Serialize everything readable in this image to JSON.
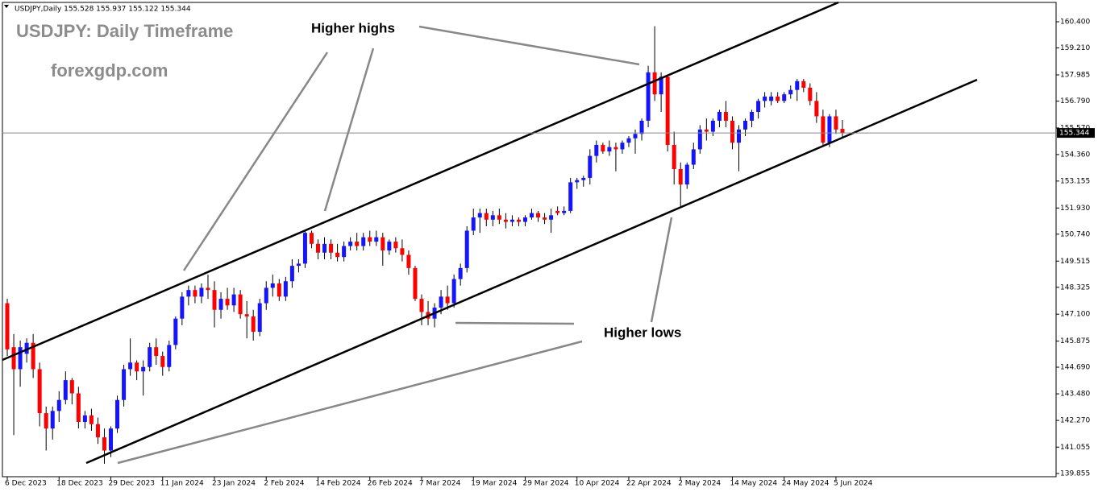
{
  "chart_data": {
    "type": "candlestick",
    "header": "USDJPY,Daily  155.528 155.937 155.122 155.344",
    "title": "USDJPY: Daily Timeframe",
    "subtitle": "forexgdp.com",
    "annotations": [
      "Higher highs",
      "Higher lows"
    ],
    "up_color": "#1414ff",
    "down_color": "#ff0000",
    "wick_color": "#000000",
    "last_price": 155.344,
    "xlim": [
      -0.75,
      162
    ],
    "ylim": [
      139.71,
      161.39
    ],
    "xticks": [
      {
        "value": 0,
        "label": "6 Dec 2023"
      },
      {
        "value": 8,
        "label": "18 Dec 2023"
      },
      {
        "value": 16,
        "label": "29 Dec 2023"
      },
      {
        "value": 24,
        "label": "11 Jan 2024"
      },
      {
        "value": 32,
        "label": "23 Jan 2024"
      },
      {
        "value": 40,
        "label": "2 Feb 2024"
      },
      {
        "value": 48,
        "label": "14 Feb 2024"
      },
      {
        "value": 56,
        "label": "26 Feb 2024"
      },
      {
        "value": 64,
        "label": "7 Mar 2024"
      },
      {
        "value": 72,
        "label": "19 Mar 2024"
      },
      {
        "value": 80,
        "label": "29 Mar 2024"
      },
      {
        "value": 88,
        "label": "10 Apr 2024"
      },
      {
        "value": 96,
        "label": "22 Apr 2024"
      },
      {
        "value": 104,
        "label": "2 May 2024"
      },
      {
        "value": 112,
        "label": "14 May 2024"
      },
      {
        "value": 120,
        "label": "24 May 2024"
      },
      {
        "value": 128,
        "label": "5 Jun 2024"
      }
    ],
    "yticks": [
      {
        "value": 160.4,
        "label": "160.400"
      },
      {
        "value": 159.21,
        "label": "159.210"
      },
      {
        "value": 157.985,
        "label": "157.985"
      },
      {
        "value": 156.79,
        "label": "156.790"
      },
      {
        "value": 155.57,
        "label": "155.570"
      },
      {
        "value": 154.36,
        "label": "154.360"
      },
      {
        "value": 153.155,
        "label": "153.155"
      },
      {
        "value": 151.93,
        "label": "151.930"
      },
      {
        "value": 150.74,
        "label": "150.740"
      },
      {
        "value": 149.515,
        "label": "149.515"
      },
      {
        "value": 148.325,
        "label": "148.325"
      },
      {
        "value": 147.1,
        "label": "147.100"
      },
      {
        "value": 145.875,
        "label": "145.875"
      },
      {
        "value": 144.69,
        "label": "144.690"
      },
      {
        "value": 143.48,
        "label": "143.480"
      },
      {
        "value": 142.27,
        "label": "142.270"
      },
      {
        "value": 141.055,
        "label": "141.055"
      },
      {
        "value": 139.855,
        "label": "139.855"
      }
    ],
    "ohlc": [
      [
        147.6,
        147.8,
        145.2,
        145.5
      ],
      [
        145.6,
        146.2,
        141.6,
        144.6
      ],
      [
        144.6,
        145.9,
        143.8,
        145.6
      ],
      [
        145.3,
        146.0,
        144.9,
        145.8
      ],
      [
        145.8,
        146.2,
        144.2,
        144.6
      ],
      [
        144.6,
        144.9,
        142.0,
        142.6
      ],
      [
        142.6,
        142.9,
        140.9,
        141.9
      ],
      [
        141.9,
        142.9,
        141.4,
        142.7
      ],
      [
        142.7,
        143.6,
        142.2,
        143.2
      ],
      [
        143.2,
        144.5,
        143.0,
        144.1
      ],
      [
        144.1,
        144.2,
        143.0,
        143.5
      ],
      [
        143.5,
        143.8,
        141.9,
        142.2
      ],
      [
        142.2,
        142.7,
        141.9,
        142.5
      ],
      [
        142.5,
        142.8,
        141.8,
        142.1
      ],
      [
        142.1,
        142.4,
        141.2,
        141.5
      ],
      [
        141.5,
        141.9,
        140.3,
        140.9
      ],
      [
        140.9,
        142.0,
        140.6,
        141.9
      ],
      [
        141.9,
        143.4,
        141.7,
        143.2
      ],
      [
        143.2,
        144.8,
        142.9,
        144.6
      ],
      [
        144.6,
        146.0,
        144.3,
        144.9
      ],
      [
        144.9,
        145.0,
        144.1,
        144.5
      ],
      [
        144.5,
        145.0,
        143.4,
        144.7
      ],
      [
        144.7,
        145.8,
        144.5,
        145.6
      ],
      [
        145.6,
        146.0,
        144.8,
        145.2
      ],
      [
        145.2,
        145.4,
        144.3,
        144.7
      ],
      [
        144.7,
        145.9,
        144.5,
        145.7
      ],
      [
        145.7,
        147.0,
        145.5,
        146.9
      ],
      [
        146.9,
        148.1,
        146.6,
        147.9
      ],
      [
        147.9,
        148.4,
        147.5,
        148.2
      ],
      [
        148.2,
        148.4,
        147.6,
        147.9
      ],
      [
        147.9,
        148.5,
        147.6,
        148.3
      ],
      [
        148.3,
        148.9,
        147.8,
        148.2
      ],
      [
        148.2,
        148.6,
        146.5,
        147.3
      ],
      [
        147.3,
        148.1,
        146.9,
        147.8
      ],
      [
        147.8,
        148.3,
        147.3,
        147.5
      ],
      [
        147.5,
        148.3,
        147.2,
        148.0
      ],
      [
        148.0,
        148.2,
        146.9,
        147.1
      ],
      [
        147.1,
        147.7,
        146.0,
        147.0
      ],
      [
        147.0,
        147.3,
        145.9,
        146.3
      ],
      [
        146.3,
        147.8,
        146.1,
        147.6
      ],
      [
        147.6,
        148.6,
        147.3,
        148.3
      ],
      [
        148.3,
        148.9,
        147.9,
        148.5
      ],
      [
        148.5,
        148.7,
        147.7,
        147.9
      ],
      [
        147.9,
        148.8,
        147.7,
        148.6
      ],
      [
        148.6,
        149.6,
        148.3,
        149.3
      ],
      [
        149.3,
        149.6,
        149.0,
        149.4
      ],
      [
        149.4,
        150.9,
        149.2,
        150.8
      ],
      [
        150.8,
        150.9,
        150.1,
        150.3
      ],
      [
        150.3,
        150.5,
        149.6,
        149.9
      ],
      [
        149.9,
        150.6,
        149.6,
        150.3
      ],
      [
        150.3,
        150.5,
        149.6,
        149.9
      ],
      [
        149.9,
        150.3,
        149.5,
        149.7
      ],
      [
        149.7,
        150.4,
        149.5,
        150.2
      ],
      [
        150.2,
        150.6,
        150.0,
        150.4
      ],
      [
        150.4,
        150.8,
        150.0,
        150.2
      ],
      [
        150.2,
        150.8,
        150.0,
        150.6
      ],
      [
        150.6,
        150.9,
        150.2,
        150.4
      ],
      [
        150.4,
        150.9,
        150.2,
        150.6
      ],
      [
        150.6,
        150.8,
        149.3,
        150.0
      ],
      [
        150.0,
        150.5,
        149.8,
        150.4
      ],
      [
        150.4,
        150.6,
        149.9,
        150.1
      ],
      [
        150.1,
        150.5,
        149.5,
        149.8
      ],
      [
        149.8,
        150.0,
        148.9,
        149.2
      ],
      [
        149.2,
        149.3,
        147.7,
        147.8
      ],
      [
        147.8,
        148.0,
        146.6,
        147.2
      ],
      [
        147.2,
        147.7,
        146.6,
        146.9
      ],
      [
        146.9,
        147.6,
        146.5,
        147.4
      ],
      [
        147.4,
        148.2,
        147.1,
        147.9
      ],
      [
        147.9,
        148.4,
        147.3,
        147.6
      ],
      [
        147.6,
        148.9,
        147.4,
        148.7
      ],
      [
        148.7,
        149.4,
        148.4,
        149.2
      ],
      [
        149.2,
        151.1,
        149.0,
        150.9
      ],
      [
        150.9,
        151.9,
        150.7,
        151.5
      ],
      [
        151.5,
        151.9,
        150.8,
        151.7
      ],
      [
        151.7,
        151.9,
        151.1,
        151.4
      ],
      [
        151.4,
        151.8,
        151.1,
        151.6
      ],
      [
        151.6,
        151.9,
        151.2,
        151.4
      ],
      [
        151.4,
        151.7,
        151.0,
        151.3
      ],
      [
        151.3,
        151.6,
        151.1,
        151.4
      ],
      [
        151.4,
        151.5,
        151.1,
        151.3
      ],
      [
        151.3,
        151.6,
        151.1,
        151.5
      ],
      [
        151.5,
        151.9,
        151.4,
        151.7
      ],
      [
        151.7,
        151.8,
        151.3,
        151.5
      ],
      [
        151.5,
        151.7,
        151.2,
        151.4
      ],
      [
        151.4,
        151.9,
        150.8,
        151.6
      ],
      [
        151.8,
        152.0,
        151.6,
        151.7
      ],
      [
        151.7,
        152.0,
        151.6,
        151.8
      ],
      [
        151.8,
        153.3,
        151.7,
        153.1
      ],
      [
        153.1,
        153.3,
        152.8,
        153.2
      ],
      [
        153.2,
        153.4,
        152.9,
        153.3
      ],
      [
        153.3,
        154.6,
        153.0,
        154.3
      ],
      [
        154.3,
        155.0,
        154.0,
        154.8
      ],
      [
        154.8,
        154.9,
        154.4,
        154.5
      ],
      [
        154.5,
        155.0,
        154.3,
        154.7
      ],
      [
        154.7,
        154.9,
        153.6,
        154.6
      ],
      [
        154.6,
        155.0,
        154.4,
        154.9
      ],
      [
        154.9,
        155.2,
        154.7,
        155.1
      ],
      [
        155.1,
        155.5,
        154.4,
        155.3
      ],
      [
        155.3,
        156.0,
        155.0,
        155.9
      ],
      [
        155.9,
        158.4,
        155.6,
        158.1
      ],
      [
        158.1,
        160.2,
        156.8,
        157.1
      ],
      [
        157.1,
        158.1,
        156.3,
        157.9
      ],
      [
        157.9,
        158.0,
        154.5,
        154.8
      ],
      [
        154.8,
        155.4,
        153.0,
        153.7
      ],
      [
        153.7,
        154.0,
        152.0,
        153.0
      ],
      [
        153.0,
        154.0,
        152.8,
        153.9
      ],
      [
        153.9,
        154.9,
        153.7,
        154.6
      ],
      [
        154.6,
        155.7,
        154.4,
        155.5
      ],
      [
        155.5,
        156.0,
        155.0,
        155.4
      ],
      [
        155.4,
        156.0,
        155.2,
        155.9
      ],
      [
        155.9,
        156.4,
        155.6,
        156.3
      ],
      [
        156.3,
        156.8,
        155.6,
        155.9
      ],
      [
        155.9,
        156.1,
        154.6,
        154.9
      ],
      [
        154.9,
        155.7,
        153.6,
        155.5
      ],
      [
        155.5,
        156.0,
        155.2,
        155.9
      ],
      [
        155.9,
        156.4,
        155.6,
        156.3
      ],
      [
        156.3,
        156.9,
        156.0,
        156.8
      ],
      [
        156.8,
        157.2,
        156.5,
        157.0
      ],
      [
        156.8,
        157.2,
        156.6,
        157.0
      ],
      [
        157.0,
        157.2,
        156.7,
        156.8
      ],
      [
        156.8,
        157.2,
        156.7,
        157.1
      ],
      [
        157.1,
        157.5,
        156.9,
        157.3
      ],
      [
        157.3,
        157.8,
        156.8,
        157.7
      ],
      [
        157.7,
        157.8,
        157.2,
        157.4
      ],
      [
        157.4,
        157.6,
        156.6,
        156.8
      ],
      [
        156.8,
        157.2,
        155.8,
        156.1
      ],
      [
        156.1,
        156.4,
        154.8,
        154.9
      ],
      [
        154.9,
        156.2,
        154.7,
        156.1
      ],
      [
        156.1,
        156.4,
        155.3,
        155.5
      ],
      [
        155.528,
        155.937,
        155.122,
        155.344
      ]
    ]
  }
}
